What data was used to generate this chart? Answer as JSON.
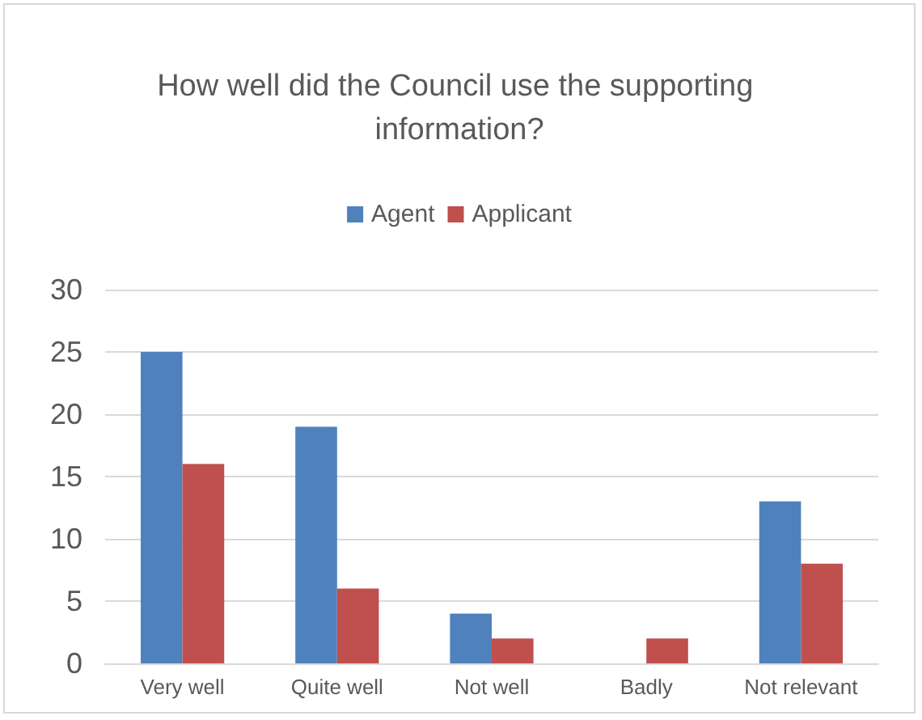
{
  "chart_data": {
    "type": "bar",
    "title": "How well did the Council use the supporting information?",
    "categories": [
      "Very well",
      "Quite well",
      "Not well",
      "Badly",
      "Not relevant"
    ],
    "series": [
      {
        "name": "Agent",
        "color": "#4f81bd",
        "values": [
          25,
          19,
          4,
          0,
          13
        ]
      },
      {
        "name": "Applicant",
        "color": "#c0504d",
        "values": [
          16,
          6,
          2,
          2,
          8
        ]
      }
    ],
    "ylim": [
      0,
      30
    ],
    "yticks": [
      0,
      5,
      10,
      15,
      20,
      25,
      30
    ],
    "grid": "y",
    "legend": "top"
  }
}
